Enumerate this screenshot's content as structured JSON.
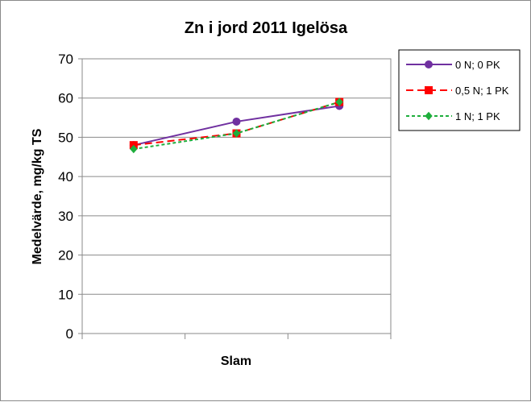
{
  "chart_data": {
    "type": "line",
    "title": "Zn i jord 2011 Igelösa",
    "xlabel": "Slam",
    "ylabel": "Medelvärde, mg/kg TS",
    "x_categories": 3,
    "ylim": [
      0,
      70
    ],
    "yticks": [
      "0",
      "10",
      "20",
      "30",
      "40",
      "50",
      "60",
      "70"
    ],
    "grid": "horizontal",
    "legend_position": "right-top",
    "series": [
      {
        "name": "0 N; 0 PK",
        "values": [
          48,
          54,
          58
        ],
        "color": "#7030a0",
        "marker": "circle",
        "dash": "solid"
      },
      {
        "name": "0,5 N; 1 PK",
        "values": [
          48,
          51,
          59
        ],
        "color": "#ff0000",
        "marker": "square",
        "dash": "dashed"
      },
      {
        "name": "1 N; 1 PK",
        "values": [
          47,
          51,
          59
        ],
        "color": "#1eae3c",
        "marker": "diamond",
        "dash": "dotted"
      }
    ]
  }
}
